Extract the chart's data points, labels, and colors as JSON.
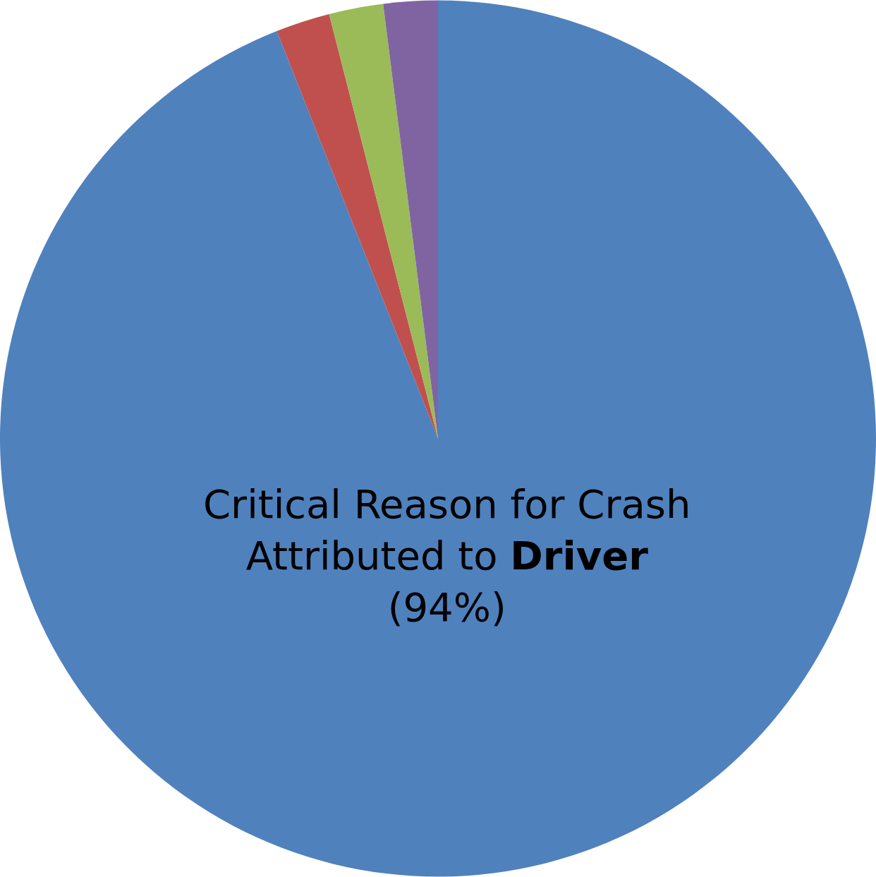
{
  "chart_data": {
    "type": "pie",
    "categories": [
      "Critical Reason for Crash Attributed to Driver",
      null,
      null,
      null
    ],
    "values": [
      94,
      2,
      2,
      2
    ],
    "value_labels": [
      "(94%)",
      null,
      null,
      null
    ],
    "colors": [
      "#4f81bd",
      "#c0504d",
      "#9bbb59",
      "#8064a2"
    ],
    "legend": false
  }
}
